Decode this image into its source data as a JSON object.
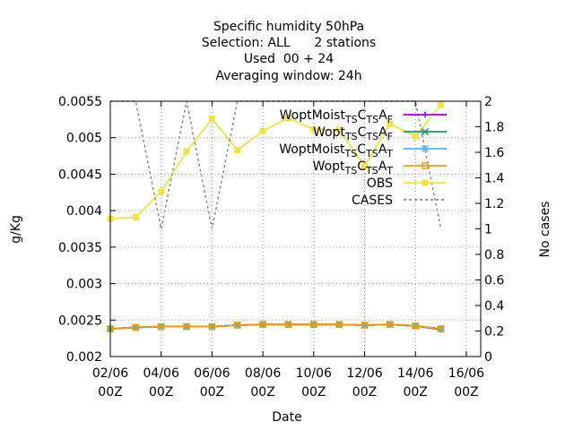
{
  "chart_data": {
    "type": "line",
    "title": [
      "Specific humidity 50hPa",
      "Selection: ALL      2 stations",
      "Used  00 + 24",
      "Averaging window: 24h"
    ],
    "xlabel": "Date",
    "ylabel": "g/Kg",
    "y2label": "No cases",
    "ylim": [
      0.002,
      0.0055
    ],
    "y2lim": [
      0,
      2
    ],
    "xlim": [
      0,
      14
    ],
    "grid": true,
    "legend_position": "top-right",
    "x_ticks": [
      {
        "x": 0,
        "l1": "02/06",
        "l2": "00Z"
      },
      {
        "x": 2,
        "l1": "04/06",
        "l2": "00Z"
      },
      {
        "x": 4,
        "l1": "06/06",
        "l2": "00Z"
      },
      {
        "x": 6,
        "l1": "08/06",
        "l2": "00Z"
      },
      {
        "x": 8,
        "l1": "10/06",
        "l2": "00Z"
      },
      {
        "x": 10,
        "l1": "12/06",
        "l2": "00Z"
      },
      {
        "x": 12,
        "l1": "14/06",
        "l2": "00Z"
      },
      {
        "x": 14,
        "l1": "16/06",
        "l2": "00Z"
      }
    ],
    "y_ticks": [
      0.002,
      0.0025,
      0.003,
      0.0035,
      0.004,
      0.0045,
      0.005,
      0.0055
    ],
    "y_tick_labels": [
      "0.002",
      "0.0025",
      "0.003",
      "0.0035",
      "0.004",
      "0.0045",
      "0.005",
      "0.0055"
    ],
    "y2_ticks": [
      0,
      0.2,
      0.4,
      0.6,
      0.8,
      1,
      1.2,
      1.4,
      1.6,
      1.8,
      2
    ],
    "y2_tick_labels": [
      "0",
      "0.2",
      "0.4",
      "0.6",
      "0.8",
      "1",
      "1.2",
      "1.4",
      "1.6",
      "1.8",
      "2"
    ],
    "x": [
      0,
      1,
      2,
      3,
      4,
      5,
      6,
      7,
      8,
      9,
      10,
      11,
      12,
      13
    ],
    "series": [
      {
        "name": "WoptMoist TS CTS AF",
        "label": {
          "base": "WoptMoist",
          "parts": [
            [
              "TS",
              0
            ],
            [
              "C",
              null
            ],
            [
              "TS",
              0
            ],
            [
              "A",
              null
            ],
            [
              "F",
              1
            ]
          ]
        },
        "axis": "y",
        "color": "#9400d3",
        "marker": "plus",
        "values": [
          0.00238,
          0.0024,
          0.00241,
          0.00241,
          0.00241,
          0.00243,
          0.00244,
          0.00244,
          0.00244,
          0.00244,
          0.00243,
          0.00244,
          0.00242,
          0.00237
        ]
      },
      {
        "name": "Wopt TS CTS AF",
        "label": {
          "base": "Wopt",
          "parts": [
            [
              "TS",
              0
            ],
            [
              "C",
              null
            ],
            [
              "TS",
              0
            ],
            [
              "A",
              null
            ],
            [
              "F",
              1
            ]
          ]
        },
        "axis": "y",
        "color": "#009e73",
        "marker": "x",
        "values": [
          0.00238,
          0.0024,
          0.00241,
          0.00241,
          0.00241,
          0.00243,
          0.00244,
          0.00244,
          0.00244,
          0.00244,
          0.00243,
          0.00244,
          0.00242,
          0.00238
        ]
      },
      {
        "name": "WoptMoist TS CTS AT",
        "label": {
          "base": "WoptMoist",
          "parts": [
            [
              "TS",
              0
            ],
            [
              "C",
              null
            ],
            [
              "TS",
              0
            ],
            [
              "A",
              null
            ],
            [
              "T",
              1
            ]
          ]
        },
        "axis": "y",
        "color": "#56b4e9",
        "marker": "star",
        "values": [
          0.00238,
          0.0024,
          0.00241,
          0.00241,
          0.00241,
          0.00243,
          0.00244,
          0.00244,
          0.00244,
          0.00244,
          0.00243,
          0.00244,
          0.00242,
          0.00238
        ]
      },
      {
        "name": "Wopt TS CTS AT",
        "label": {
          "base": "Wopt",
          "parts": [
            [
              "TS",
              0
            ],
            [
              "C",
              null
            ],
            [
              "TS",
              0
            ],
            [
              "A",
              null
            ],
            [
              "T",
              1
            ]
          ]
        },
        "axis": "y",
        "color": "#e69f00",
        "marker": "box",
        "values": [
          0.00238,
          0.0024,
          0.00241,
          0.00241,
          0.00241,
          0.00243,
          0.00244,
          0.00244,
          0.00244,
          0.00244,
          0.00243,
          0.00244,
          0.00242,
          0.00238
        ]
      },
      {
        "name": "OBS",
        "axis": "y",
        "color": "#f0e442",
        "marker": "boxfill",
        "values": [
          0.00389,
          0.00391,
          0.00426,
          0.00481,
          0.00526,
          0.00483,
          0.00509,
          0.00527,
          0.00511,
          0.00511,
          0.00461,
          0.00519,
          0.00502,
          0.00545
        ]
      },
      {
        "name": "CASES",
        "axis": "y2",
        "color": "#8c8c8c",
        "marker": "none",
        "dash": "3,3",
        "values": [
          2,
          2,
          1,
          2,
          1,
          2,
          2,
          2,
          2,
          2,
          2,
          2,
          2,
          1
        ]
      }
    ]
  }
}
